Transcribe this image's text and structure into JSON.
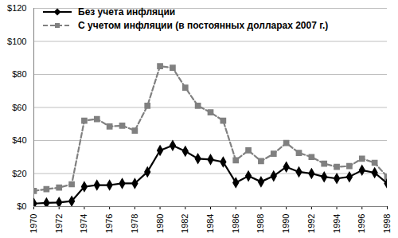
{
  "chart_data": {
    "type": "line",
    "x": [
      1970,
      1971,
      1972,
      1973,
      1974,
      1975,
      1976,
      1977,
      1978,
      1979,
      1980,
      1981,
      1982,
      1983,
      1984,
      1985,
      1986,
      1987,
      1988,
      1989,
      1990,
      1991,
      1992,
      1993,
      1994,
      1995,
      1996,
      1997,
      1998
    ],
    "series": [
      {
        "name": "Без учета инфляции",
        "color": "#000000",
        "marker": "diamond",
        "line_style": "solid",
        "values": [
          1.8,
          2.2,
          2.5,
          3.3,
          12,
          13,
          13,
          14,
          14,
          21,
          34,
          37,
          33.5,
          29,
          28.5,
          27,
          14.5,
          18.5,
          15,
          18.5,
          24,
          21,
          20,
          18,
          17,
          18,
          22,
          20.5,
          14
        ]
      },
      {
        "name": "С учетом инфляции (в постоянных долларах 2007 г.)",
        "color": "#808080",
        "marker": "square",
        "line_style": "dashed",
        "values": [
          9.5,
          10.5,
          11.5,
          13.5,
          52,
          53,
          48.5,
          49,
          46,
          61,
          85,
          84,
          72,
          61,
          57,
          52,
          28,
          34,
          27.5,
          32,
          38.5,
          32.5,
          30,
          26,
          24,
          24.5,
          29,
          26.5,
          18
        ]
      }
    ],
    "xlim": [
      1970,
      1998
    ],
    "xticks": [
      1970,
      1972,
      1974,
      1976,
      1978,
      1980,
      1982,
      1984,
      1986,
      1988,
      1990,
      1992,
      1994,
      1996,
      1998
    ],
    "ylim": [
      0,
      120
    ],
    "yticks": [
      {
        "value": 0,
        "label": "$0"
      },
      {
        "value": 20,
        "label": "$20"
      },
      {
        "value": 40,
        "label": "$40"
      },
      {
        "value": 60,
        "label": "$60"
      },
      {
        "value": 80,
        "label": "$80"
      },
      {
        "value": 100,
        "label": "$100"
      },
      {
        "value": 120,
        "label": "$120"
      }
    ],
    "grid": true,
    "legend": "top-left"
  }
}
